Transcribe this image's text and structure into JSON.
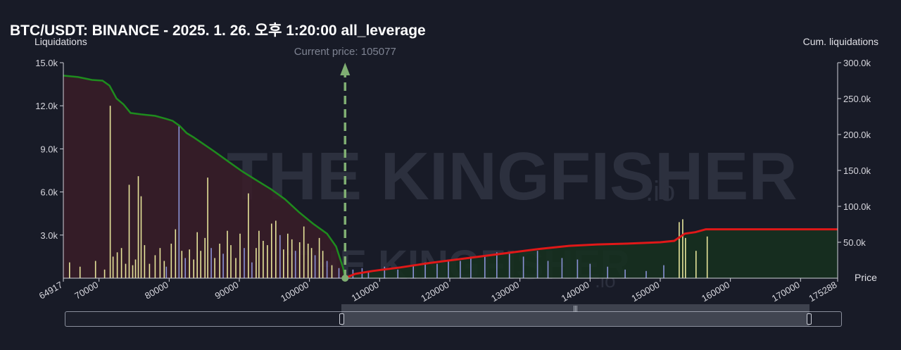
{
  "title": "BTC/USDT: BINANCE - 2025. 1. 26. 오후 1:20:00 all_leverage",
  "left_axis_title": "Liquidations",
  "right_axis_title": "Cum. liquidations",
  "x_axis_title": "Price",
  "current_price_label": "Current price: 105077",
  "watermark": {
    "main": "THE KINGFISHER",
    "sub": ".io"
  },
  "colors": {
    "background": "#181b27",
    "short_cum_line": "#1e8c1e",
    "long_cum_line": "#e01818",
    "short_fill": "#3a1c28",
    "long_fill": "#16301f",
    "bar_yellow": "#e6e49a",
    "bar_blue": "#8a92d6",
    "current_price_marker": "#7fae72"
  },
  "chart_data": {
    "type": "bar",
    "title": "BTC/USDT: BINANCE - 2025. 1. 26. 오후 1:20:00 all_leverage",
    "xlabel": "Price",
    "ylabel": "Liquidations",
    "y2label": "Cum. liquidations",
    "xlim": [
      64917,
      175288
    ],
    "ylim": [
      0,
      15000
    ],
    "y2lim": [
      0,
      300000
    ],
    "current_price": 105077,
    "x_ticks": [
      "64917",
      "70000",
      "80000",
      "90000",
      "100000",
      "110000",
      "120000",
      "130000",
      "140000",
      "150000",
      "160000",
      "170000",
      "175288"
    ],
    "x_tick_values": [
      64917,
      70000,
      80000,
      90000,
      100000,
      110000,
      120000,
      130000,
      140000,
      150000,
      160000,
      170000,
      175288
    ],
    "y_ticks": [
      "3.0k",
      "6.0k",
      "9.0k",
      "12.0k",
      "15.0k"
    ],
    "y_tick_values": [
      3000,
      6000,
      9000,
      12000,
      15000
    ],
    "y2_ticks": [
      "50.0k",
      "100.0k",
      "150.0k",
      "200.0k",
      "250.0k",
      "300.0k"
    ],
    "y2_tick_values": [
      50000,
      100000,
      150000,
      200000,
      250000,
      300000
    ],
    "bars": [
      {
        "x": 65800,
        "y": 1100,
        "c": "y"
      },
      {
        "x": 67300,
        "y": 800,
        "c": "y"
      },
      {
        "x": 69500,
        "y": 1200,
        "c": "y"
      },
      {
        "x": 70800,
        "y": 600,
        "c": "y"
      },
      {
        "x": 71600,
        "y": 12000,
        "c": "y"
      },
      {
        "x": 72000,
        "y": 1500,
        "c": "y"
      },
      {
        "x": 72600,
        "y": 1800,
        "c": "y"
      },
      {
        "x": 73200,
        "y": 2100,
        "c": "y"
      },
      {
        "x": 73800,
        "y": 1000,
        "c": "y"
      },
      {
        "x": 74300,
        "y": 6500,
        "c": "y"
      },
      {
        "x": 74800,
        "y": 900,
        "c": "y"
      },
      {
        "x": 75200,
        "y": 1300,
        "c": "y"
      },
      {
        "x": 75600,
        "y": 7100,
        "c": "y"
      },
      {
        "x": 76000,
        "y": 5700,
        "c": "y"
      },
      {
        "x": 76500,
        "y": 2300,
        "c": "y"
      },
      {
        "x": 77200,
        "y": 1000,
        "c": "y"
      },
      {
        "x": 78000,
        "y": 1600,
        "c": "y"
      },
      {
        "x": 78700,
        "y": 2100,
        "c": "y"
      },
      {
        "x": 79300,
        "y": 1200,
        "c": "y"
      },
      {
        "x": 79600,
        "y": 800,
        "c": "b"
      },
      {
        "x": 80300,
        "y": 2400,
        "c": "y"
      },
      {
        "x": 80900,
        "y": 3400,
        "c": "y"
      },
      {
        "x": 81400,
        "y": 10600,
        "c": "b"
      },
      {
        "x": 81800,
        "y": 1900,
        "c": "y"
      },
      {
        "x": 82300,
        "y": 1400,
        "c": "b"
      },
      {
        "x": 82900,
        "y": 2000,
        "c": "y"
      },
      {
        "x": 83500,
        "y": 1300,
        "c": "y"
      },
      {
        "x": 84000,
        "y": 3200,
        "c": "y"
      },
      {
        "x": 84500,
        "y": 1900,
        "c": "y"
      },
      {
        "x": 85100,
        "y": 2800,
        "c": "y"
      },
      {
        "x": 85500,
        "y": 7000,
        "c": "y"
      },
      {
        "x": 86000,
        "y": 2100,
        "c": "b"
      },
      {
        "x": 86500,
        "y": 1400,
        "c": "y"
      },
      {
        "x": 87200,
        "y": 2400,
        "c": "y"
      },
      {
        "x": 87700,
        "y": 1700,
        "c": "b"
      },
      {
        "x": 88300,
        "y": 3300,
        "c": "y"
      },
      {
        "x": 88800,
        "y": 2300,
        "c": "y"
      },
      {
        "x": 89500,
        "y": 1400,
        "c": "y"
      },
      {
        "x": 90100,
        "y": 3100,
        "c": "y"
      },
      {
        "x": 90700,
        "y": 2100,
        "c": "b"
      },
      {
        "x": 91300,
        "y": 5900,
        "c": "y"
      },
      {
        "x": 91800,
        "y": 1100,
        "c": "b"
      },
      {
        "x": 92400,
        "y": 2100,
        "c": "y"
      },
      {
        "x": 92800,
        "y": 3300,
        "c": "y"
      },
      {
        "x": 93400,
        "y": 2600,
        "c": "y"
      },
      {
        "x": 94000,
        "y": 2300,
        "c": "y"
      },
      {
        "x": 94600,
        "y": 3800,
        "c": "y"
      },
      {
        "x": 95200,
        "y": 4000,
        "c": "y"
      },
      {
        "x": 95800,
        "y": 3000,
        "c": "b"
      },
      {
        "x": 96300,
        "y": 2000,
        "c": "y"
      },
      {
        "x": 96900,
        "y": 3100,
        "c": "y"
      },
      {
        "x": 97500,
        "y": 2700,
        "c": "y"
      },
      {
        "x": 98000,
        "y": 1900,
        "c": "b"
      },
      {
        "x": 98600,
        "y": 2500,
        "c": "y"
      },
      {
        "x": 99200,
        "y": 3600,
        "c": "y"
      },
      {
        "x": 99800,
        "y": 2400,
        "c": "y"
      },
      {
        "x": 100300,
        "y": 2100,
        "c": "y"
      },
      {
        "x": 100800,
        "y": 1600,
        "c": "b"
      },
      {
        "x": 101400,
        "y": 2800,
        "c": "y"
      },
      {
        "x": 101900,
        "y": 1900,
        "c": "y"
      },
      {
        "x": 102500,
        "y": 1200,
        "c": "b"
      },
      {
        "x": 103200,
        "y": 900,
        "c": "y"
      },
      {
        "x": 104200,
        "y": 700,
        "c": "b"
      },
      {
        "x": 106200,
        "y": 600,
        "c": "b"
      },
      {
        "x": 107500,
        "y": 700,
        "c": "b"
      },
      {
        "x": 108400,
        "y": 500,
        "c": "b"
      },
      {
        "x": 110700,
        "y": 800,
        "c": "b"
      },
      {
        "x": 112600,
        "y": 600,
        "c": "b"
      },
      {
        "x": 114800,
        "y": 900,
        "c": "b"
      },
      {
        "x": 116500,
        "y": 1100,
        "c": "b"
      },
      {
        "x": 118200,
        "y": 1000,
        "c": "b"
      },
      {
        "x": 119800,
        "y": 1300,
        "c": "b"
      },
      {
        "x": 121500,
        "y": 1200,
        "c": "b"
      },
      {
        "x": 123000,
        "y": 1500,
        "c": "b"
      },
      {
        "x": 125000,
        "y": 1600,
        "c": "b"
      },
      {
        "x": 126700,
        "y": 1800,
        "c": "b"
      },
      {
        "x": 128500,
        "y": 1700,
        "c": "b"
      },
      {
        "x": 130500,
        "y": 1500,
        "c": "b"
      },
      {
        "x": 132500,
        "y": 1900,
        "c": "b"
      },
      {
        "x": 134000,
        "y": 1200,
        "c": "b"
      },
      {
        "x": 136000,
        "y": 1400,
        "c": "b"
      },
      {
        "x": 138200,
        "y": 1300,
        "c": "b"
      },
      {
        "x": 140000,
        "y": 1000,
        "c": "b"
      },
      {
        "x": 142500,
        "y": 800,
        "c": "b"
      },
      {
        "x": 145000,
        "y": 600,
        "c": "b"
      },
      {
        "x": 148000,
        "y": 500,
        "c": "b"
      },
      {
        "x": 150500,
        "y": 900,
        "c": "b"
      },
      {
        "x": 152700,
        "y": 3900,
        "c": "y"
      },
      {
        "x": 153200,
        "y": 4100,
        "c": "y"
      },
      {
        "x": 153600,
        "y": 2800,
        "c": "y"
      },
      {
        "x": 155100,
        "y": 1900,
        "c": "y"
      },
      {
        "x": 156700,
        "y": 2900,
        "c": "y"
      }
    ],
    "cum_short": [
      [
        64917,
        282000
      ],
      [
        67000,
        280000
      ],
      [
        69000,
        276000
      ],
      [
        70500,
        275000
      ],
      [
        71500,
        268000
      ],
      [
        72500,
        250000
      ],
      [
        73500,
        242000
      ],
      [
        74500,
        230000
      ],
      [
        76000,
        228000
      ],
      [
        78000,
        226000
      ],
      [
        79500,
        222000
      ],
      [
        80500,
        219000
      ],
      [
        81500,
        212000
      ],
      [
        82500,
        202000
      ],
      [
        83500,
        196000
      ],
      [
        85000,
        186000
      ],
      [
        86500,
        176000
      ],
      [
        88500,
        162000
      ],
      [
        90500,
        148000
      ],
      [
        92500,
        136000
      ],
      [
        94500,
        124000
      ],
      [
        96500,
        110000
      ],
      [
        98500,
        92000
      ],
      [
        100500,
        76000
      ],
      [
        102500,
        62000
      ],
      [
        103800,
        44000
      ],
      [
        104800,
        14000
      ],
      [
        105077,
        0
      ]
    ],
    "cum_long": [
      [
        105077,
        0
      ],
      [
        106500,
        6000
      ],
      [
        109000,
        10000
      ],
      [
        113000,
        15000
      ],
      [
        117000,
        21000
      ],
      [
        121000,
        26000
      ],
      [
        125000,
        31000
      ],
      [
        129000,
        36000
      ],
      [
        133000,
        41000
      ],
      [
        137000,
        45000
      ],
      [
        141000,
        47000
      ],
      [
        145000,
        48000
      ],
      [
        150000,
        50000
      ],
      [
        152000,
        52000
      ],
      [
        153500,
        62000
      ],
      [
        155000,
        64000
      ],
      [
        156500,
        68000
      ],
      [
        158000,
        68000
      ],
      [
        175288,
        68000
      ]
    ]
  }
}
